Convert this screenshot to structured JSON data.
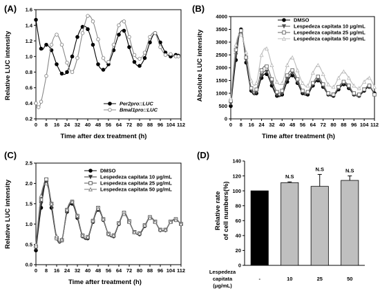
{
  "colors": {
    "black": "#000000",
    "dark_gray": "#555555",
    "mid_gray": "#888888",
    "light_gray": "#bbbbbb",
    "bar_gray": "#bfbfbf"
  },
  "chart_data": [
    {
      "panel": "(A)",
      "type": "line",
      "xlabel": "Time after dex treatment (h)",
      "ylabel": "Relative LUC intensity",
      "xlim": [
        0,
        112
      ],
      "ylim": [
        0.2,
        1.6
      ],
      "xticks": [
        0,
        8,
        16,
        24,
        32,
        40,
        48,
        56,
        64,
        72,
        80,
        88,
        96,
        104,
        112
      ],
      "yticks": [
        0.2,
        0.4,
        0.6,
        0.8,
        1.0,
        1.2,
        1.4,
        1.6
      ],
      "legend_position": "bottom-right",
      "series": [
        {
          "name": "Per2pro::LUC",
          "color": "#000000",
          "marker": "filled-circle",
          "x": [
            0,
            4,
            8,
            12,
            16,
            20,
            24,
            28,
            32,
            36,
            40,
            44,
            48,
            52,
            56,
            60,
            64,
            68,
            72,
            76,
            80,
            84,
            88,
            92,
            96,
            100,
            104,
            108,
            110
          ],
          "y": [
            1.47,
            1.1,
            1.15,
            1.08,
            0.9,
            0.78,
            0.8,
            1.0,
            1.25,
            1.38,
            1.35,
            1.15,
            0.9,
            0.83,
            0.9,
            1.08,
            1.28,
            1.33,
            1.12,
            0.93,
            0.88,
            0.98,
            1.18,
            1.3,
            1.18,
            1.05,
            1.0,
            1.02,
            1.01
          ]
        },
        {
          "name": "Bmal1pro::LUC",
          "color": "#888888",
          "marker": "open-circle",
          "x": [
            0,
            2,
            4,
            8,
            12,
            16,
            20,
            24,
            28,
            32,
            36,
            40,
            44,
            48,
            52,
            56,
            60,
            64,
            68,
            72,
            76,
            80,
            84,
            88,
            92,
            96,
            100,
            104,
            108,
            110
          ],
          "y": [
            0.4,
            0.35,
            0.42,
            0.75,
            1.15,
            1.28,
            1.15,
            0.92,
            0.8,
            0.98,
            1.3,
            1.52,
            1.45,
            1.22,
            0.98,
            0.93,
            1.15,
            1.4,
            1.45,
            1.25,
            1.02,
            0.97,
            1.05,
            1.25,
            1.3,
            1.12,
            1.02,
            1.03,
            1.0,
            1.0
          ]
        }
      ]
    },
    {
      "panel": "(B)",
      "type": "line",
      "xlabel": "Time after treatment (h)",
      "ylabel": "Absolute LUC intensity",
      "xlim": [
        0,
        112
      ],
      "ylim": [
        0,
        4000
      ],
      "xticks": [
        0,
        8,
        16,
        24,
        32,
        40,
        48,
        56,
        64,
        72,
        80,
        88,
        96,
        104,
        112
      ],
      "yticks": [
        0,
        500,
        1000,
        1500,
        2000,
        2500,
        3000,
        3500,
        4000
      ],
      "legend_position": "top-right",
      "series": [
        {
          "name": "DMSO",
          "color": "#000000",
          "marker": "filled-circle",
          "x": [
            0,
            4,
            8,
            12,
            16,
            20,
            24,
            28,
            32,
            36,
            40,
            44,
            48,
            52,
            56,
            60,
            64,
            68,
            72,
            76,
            80,
            84,
            88,
            92,
            96,
            100,
            104,
            108,
            112
          ],
          "y": [
            500,
            2300,
            3500,
            2200,
            1100,
            1000,
            1600,
            1750,
            1300,
            900,
            950,
            1450,
            1700,
            1400,
            1000,
            950,
            1300,
            1500,
            1250,
            950,
            900,
            1150,
            1350,
            1200,
            950,
            900,
            1100,
            1250,
            1000
          ]
        },
        {
          "name": "Lespedeza capitata  10 μg/mL",
          "color": "#555555",
          "marker": "triangle-down",
          "x": [
            0,
            4,
            8,
            12,
            16,
            20,
            24,
            28,
            32,
            36,
            40,
            44,
            48,
            52,
            56,
            60,
            64,
            68,
            72,
            76,
            80,
            84,
            88,
            92,
            96,
            100,
            104,
            108,
            112
          ],
          "y": [
            600,
            2500,
            3400,
            2300,
            1150,
            1050,
            1700,
            1850,
            1400,
            950,
            1000,
            1550,
            1800,
            1450,
            1050,
            1000,
            1350,
            1550,
            1300,
            950,
            950,
            1200,
            1400,
            1250,
            950,
            900,
            1150,
            1250,
            950
          ]
        },
        {
          "name": "Lespedeza capitata  25 μg/mL",
          "color": "#666666",
          "marker": "square",
          "x": [
            0,
            4,
            8,
            12,
            16,
            20,
            24,
            28,
            32,
            36,
            40,
            44,
            48,
            52,
            56,
            60,
            64,
            68,
            72,
            76,
            80,
            84,
            88,
            92,
            96,
            100,
            104,
            108,
            112
          ],
          "y": [
            700,
            2700,
            3450,
            2400,
            1200,
            1150,
            1900,
            2050,
            1550,
            1050,
            1100,
            1700,
            1900,
            1550,
            1100,
            1050,
            1400,
            1650,
            1350,
            1000,
            950,
            1250,
            1450,
            1300,
            1000,
            950,
            1150,
            1300,
            950
          ]
        },
        {
          "name": "Lespedeza capitata  50 μg/mL",
          "color": "#bbbbbb",
          "marker": "triangle-up",
          "x": [
            0,
            4,
            8,
            12,
            16,
            20,
            24,
            28,
            32,
            36,
            40,
            44,
            48,
            52,
            56,
            60,
            64,
            68,
            72,
            76,
            80,
            84,
            88,
            92,
            96,
            100,
            104,
            108,
            112
          ],
          "y": [
            800,
            2900,
            3300,
            2600,
            1500,
            1400,
            2500,
            2750,
            2100,
            1450,
            1400,
            2100,
            2400,
            1900,
            1400,
            1300,
            1800,
            2100,
            1750,
            1350,
            1250,
            1600,
            1850,
            1600,
            1300,
            1200,
            1450,
            1600,
            1250
          ]
        }
      ]
    },
    {
      "panel": "(C)",
      "type": "line",
      "xlabel": "Time after treatment (h)",
      "ylabel": "Relative LUC intensity",
      "xlim": [
        0,
        112
      ],
      "ylim": [
        0,
        2.5
      ],
      "xticks": [
        0,
        8,
        16,
        24,
        32,
        40,
        48,
        56,
        64,
        72,
        80,
        88,
        96,
        104,
        112
      ],
      "yticks": [
        0.0,
        0.5,
        1.0,
        1.5,
        2.0,
        2.5
      ],
      "legend_position": "top-right",
      "series": [
        {
          "name": "DMSO",
          "color": "#000000",
          "marker": "filled-circle",
          "x": [
            0,
            4,
            8,
            12,
            16,
            20,
            24,
            28,
            32,
            36,
            40,
            44,
            48,
            52,
            56,
            60,
            64,
            68,
            72,
            76,
            80,
            84,
            88,
            92,
            96,
            100,
            104,
            108,
            112
          ],
          "y": [
            0.35,
            1.4,
            2.05,
            1.4,
            0.65,
            0.6,
            1.3,
            1.5,
            1.15,
            0.7,
            0.65,
            1.05,
            1.35,
            1.1,
            0.75,
            0.7,
            1.0,
            1.25,
            1.05,
            0.8,
            0.75,
            0.95,
            1.15,
            1.05,
            0.85,
            0.85,
            1.05,
            1.1,
            1.0
          ]
        },
        {
          "name": "Lespedeza capitata  10 μg/mL",
          "color": "#333333",
          "marker": "triangle-down",
          "x": [
            0,
            4,
            8,
            12,
            16,
            20,
            24,
            28,
            32,
            36,
            40,
            44,
            48,
            52,
            56,
            60,
            64,
            68,
            72,
            76,
            80,
            84,
            88,
            92,
            96,
            100,
            104,
            108,
            112
          ],
          "y": [
            0.4,
            1.5,
            2.08,
            1.45,
            0.65,
            0.6,
            1.3,
            1.52,
            1.15,
            0.7,
            0.65,
            1.05,
            1.38,
            1.1,
            0.75,
            0.7,
            1.0,
            1.25,
            1.05,
            0.8,
            0.75,
            0.95,
            1.15,
            1.05,
            0.85,
            0.85,
            1.05,
            1.1,
            1.0
          ]
        },
        {
          "name": "Lespedeza capitata  25 μg/mL",
          "color": "#555555",
          "marker": "square",
          "x": [
            0,
            4,
            8,
            12,
            16,
            20,
            24,
            28,
            32,
            36,
            40,
            44,
            48,
            52,
            56,
            60,
            64,
            68,
            72,
            76,
            80,
            84,
            88,
            92,
            96,
            100,
            104,
            108,
            112
          ],
          "y": [
            0.45,
            1.6,
            2.1,
            1.5,
            0.65,
            0.6,
            1.35,
            1.55,
            1.2,
            0.72,
            0.68,
            1.08,
            1.4,
            1.12,
            0.76,
            0.72,
            1.02,
            1.28,
            1.07,
            0.8,
            0.77,
            0.97,
            1.17,
            1.06,
            0.86,
            0.86,
            1.06,
            1.12,
            1.0
          ]
        },
        {
          "name": "Lespedeza capitata  50 μg/mL",
          "color": "#777777",
          "marker": "triangle-up",
          "x": [
            0,
            4,
            8,
            12,
            16,
            20,
            24,
            28,
            32,
            36,
            40,
            44,
            48,
            52,
            56,
            60,
            64,
            68,
            72,
            76,
            80,
            84,
            88,
            92,
            96,
            100,
            104,
            108,
            112
          ],
          "y": [
            0.5,
            1.7,
            2.0,
            1.5,
            0.7,
            0.62,
            1.35,
            1.55,
            1.2,
            0.72,
            0.68,
            1.08,
            1.38,
            1.12,
            0.76,
            0.72,
            1.02,
            1.25,
            1.05,
            0.8,
            0.77,
            0.97,
            1.15,
            1.05,
            0.86,
            0.86,
            1.05,
            1.1,
            1.0
          ]
        }
      ]
    },
    {
      "panel": "(D)",
      "type": "bar",
      "ylabel_line1": "Relative rate",
      "ylabel_line2": "of cell numbers(%)",
      "ylim": [
        0,
        140
      ],
      "yticks": [
        0,
        20,
        40,
        60,
        80,
        100,
        120,
        140
      ],
      "row_label_line1": "Lespedeza",
      "row_label_line2": "capitata",
      "row_label_line3": "(μg/mL)",
      "categories": [
        "-",
        "10",
        "25",
        "50"
      ],
      "values": [
        100,
        111,
        106,
        114
      ],
      "errors": [
        0,
        1,
        16,
        6
      ],
      "annotations": [
        "",
        "N.S",
        "N.S",
        "N.S"
      ],
      "bar_colors": [
        "#000000",
        "#bfbfbf",
        "#bfbfbf",
        "#bfbfbf"
      ]
    }
  ]
}
